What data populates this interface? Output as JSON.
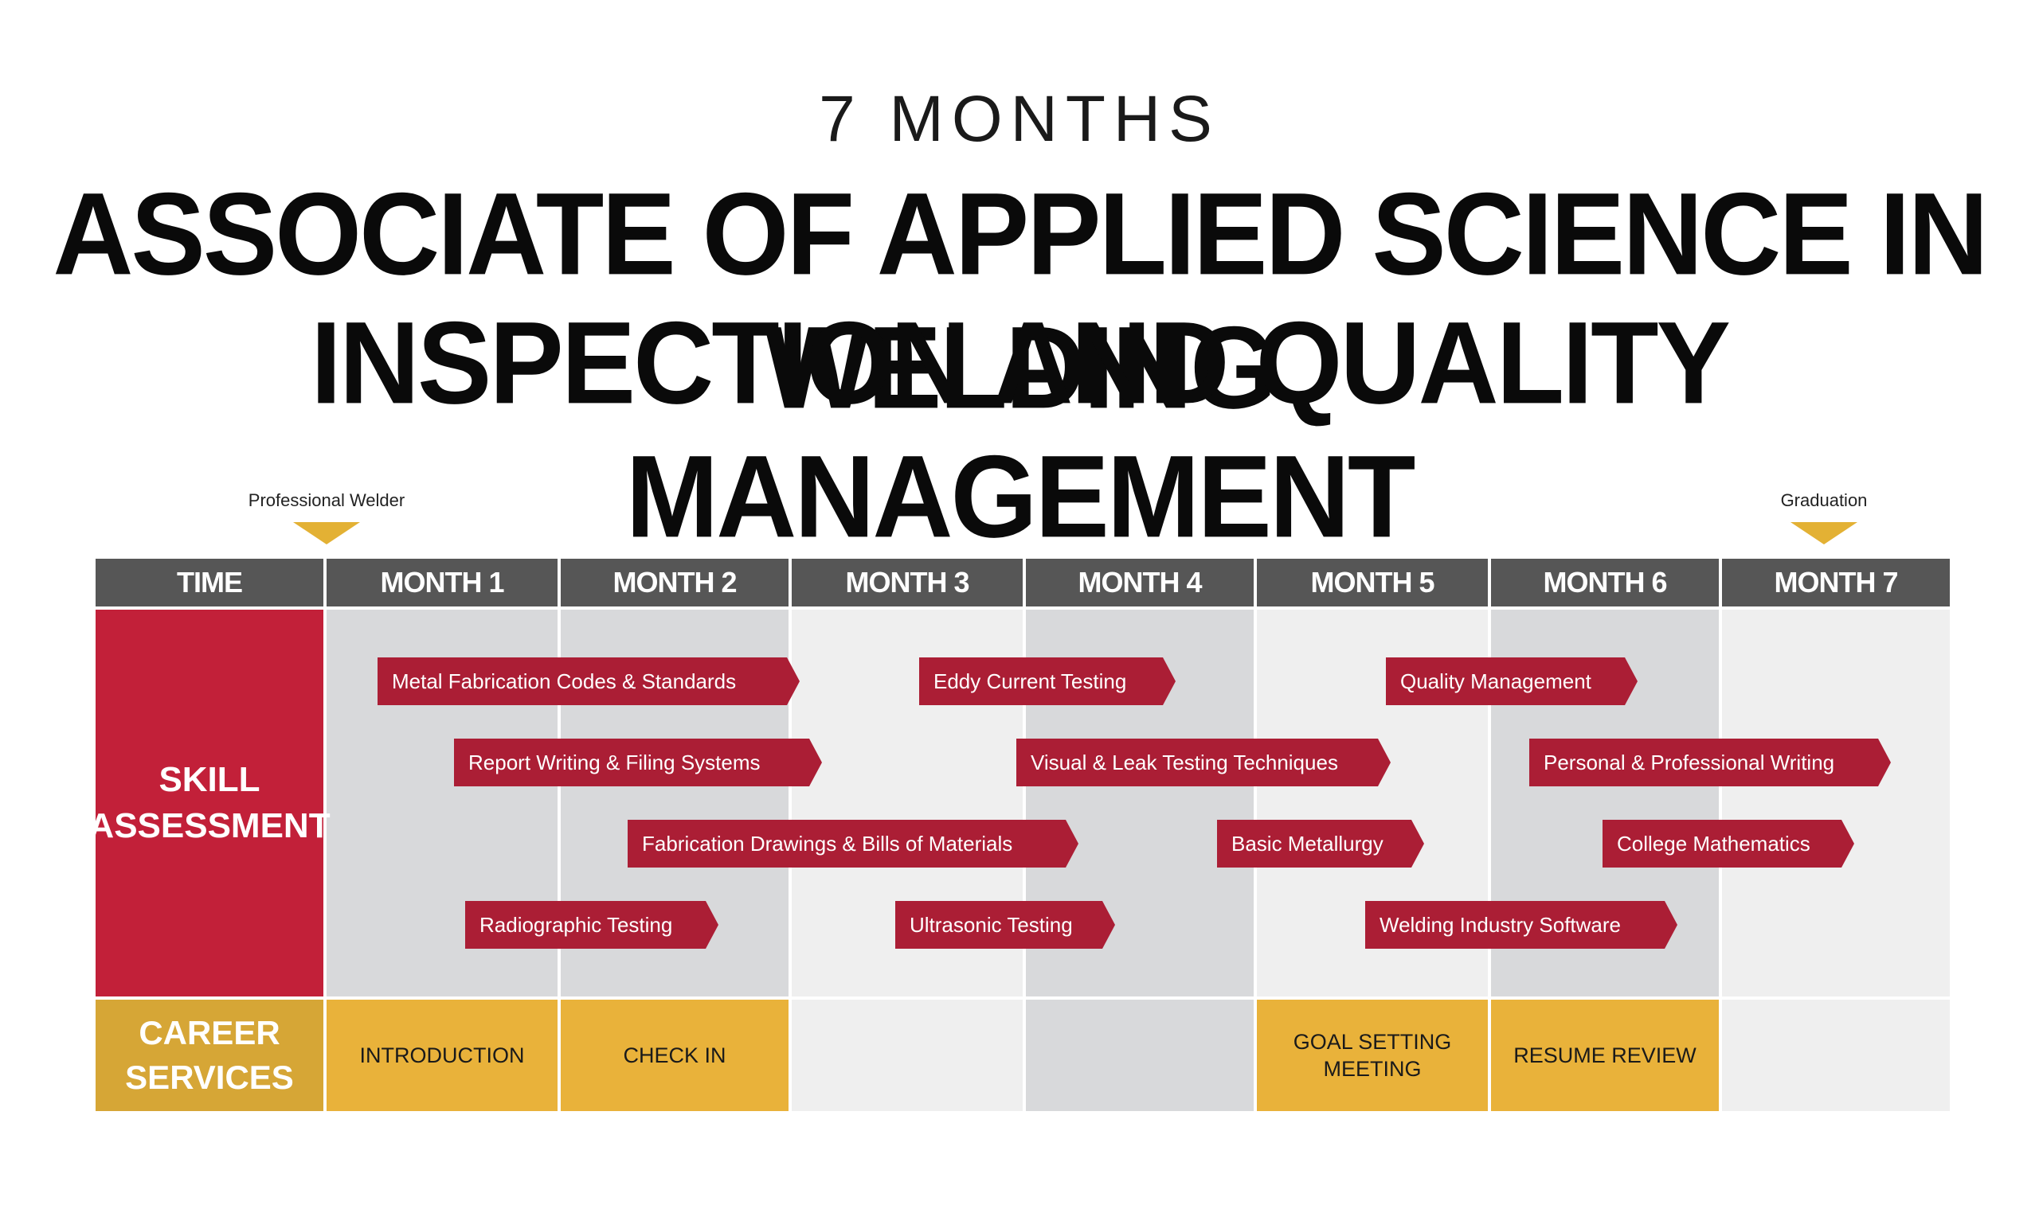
{
  "header": {
    "subtitle": "7 MONTHS",
    "title_line_1": "ASSOCIATE OF APPLIED SCIENCE IN WELDING",
    "title_line_2": "INSPECTION AND QUALITY MANAGEMENT"
  },
  "markers": {
    "start": "Professional Welder",
    "end": "Graduation"
  },
  "columns": [
    "TIME",
    "MONTH 1",
    "MONTH 2",
    "MONTH 3",
    "MONTH 4",
    "MONTH 5",
    "MONTH 6",
    "MONTH 7"
  ],
  "rows": {
    "skill": [
      "SKILL",
      "ASSESSMENT"
    ],
    "career": [
      "CAREER",
      "SERVICES"
    ]
  },
  "courses": [
    "Metal Fabrication Codes & Standards",
    "Eddy Current Testing",
    "Quality Management",
    "Report Writing & Filing Systems",
    "Visual & Leak Testing Techniques",
    "Personal & Professional Writing",
    "Fabrication Drawings & Bills of Materials",
    "Basic Metallurgy",
    "College Mathematics",
    "Radiographic Testing",
    "Ultrasonic Testing",
    "Welding Industry Software"
  ],
  "career_services": {
    "month1": "INTRODUCTION",
    "month2": "CHECK IN",
    "month5_line1": "GOAL SETTING",
    "month5_line2": "MEETING",
    "month6": "RESUME REVIEW"
  },
  "colors": {
    "header_bg": "#565656",
    "skill_red": "#c22039",
    "course_red": "#ab1e35",
    "career_gold": "#d6a636",
    "career_fill": "#e9b23a",
    "marker_gold": "#e3b134"
  }
}
